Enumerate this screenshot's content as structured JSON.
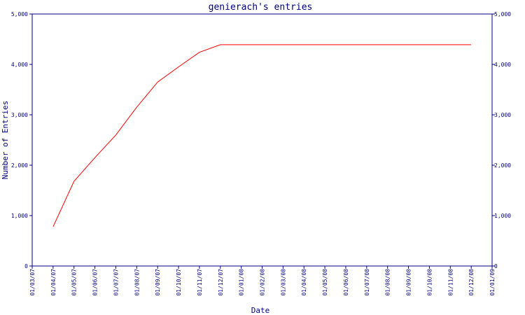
{
  "chart_data": {
    "type": "line",
    "title": "genierach's entries",
    "xlabel": "Date",
    "ylabel": "Number of Entries",
    "ylim": [
      0,
      5000
    ],
    "yticks": [
      "0",
      "1,000",
      "2,000",
      "3,000",
      "4,000",
      "5,000"
    ],
    "ytick_values": [
      0,
      1000,
      2000,
      3000,
      4000,
      5000
    ],
    "xticks": [
      "01/03/07",
      "01/04/07",
      "01/05/07",
      "01/06/07",
      "01/07/07",
      "01/08/07",
      "01/09/07",
      "01/10/07",
      "01/11/07",
      "01/12/07",
      "01/01/08",
      "01/02/08",
      "01/03/08",
      "01/04/08",
      "01/05/08",
      "01/06/08",
      "01/07/08",
      "01/08/08",
      "01/09/08",
      "01/10/08",
      "01/11/08",
      "01/12/08",
      "01/01/09"
    ],
    "series": [
      {
        "color": "#ff0000",
        "x": [
          "01/04/07",
          "01/05/07",
          "01/06/07",
          "01/07/07",
          "01/08/07",
          "01/09/07",
          "01/10/07",
          "01/11/07",
          "01/12/07",
          "01/01/08",
          "01/02/08",
          "01/03/08",
          "01/04/08",
          "01/05/08",
          "01/06/08",
          "01/07/08",
          "01/08/08",
          "01/09/08",
          "01/10/08",
          "01/11/08",
          "01/12/08"
        ],
        "values": [
          780,
          1680,
          2150,
          2600,
          3150,
          3650,
          3950,
          4240,
          4390,
          4390,
          4390,
          4390,
          4390,
          4390,
          4390,
          4390,
          4390,
          4390,
          4390,
          4390,
          4390
        ]
      }
    ],
    "grid": false,
    "secondary_y_axis": true
  }
}
